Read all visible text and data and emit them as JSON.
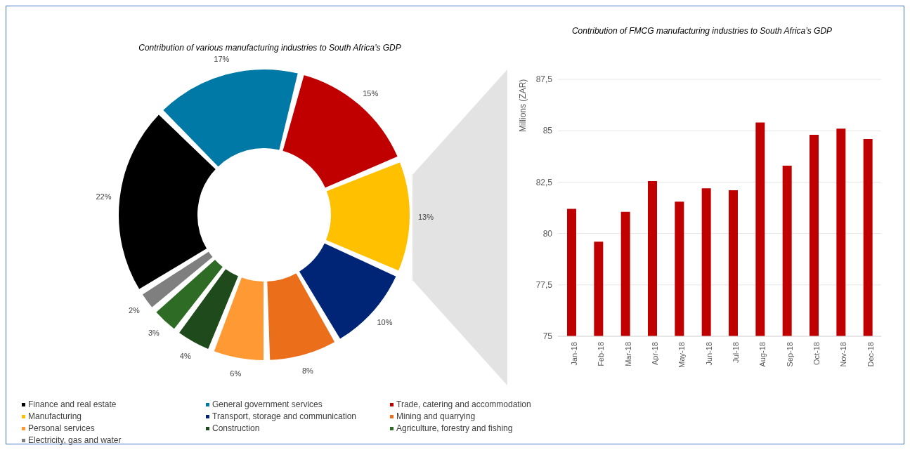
{
  "chart_data": [
    {
      "type": "donut",
      "title": "Contribution of various manufacturing industries to South Africa’s GDP",
      "categories": [
        "Finance and real estate",
        "General government services",
        "Trade, catering and accommodation",
        "Manufacturing",
        "Transport, storage and communication",
        "Mining and quarrying",
        "Personal services",
        "Construction",
        "Agriculture, forestry and fishing",
        "Electricity, gas and water"
      ],
      "values": [
        22,
        17,
        15,
        13,
        10,
        8,
        6,
        4,
        3,
        2
      ],
      "colors": [
        "#000000",
        "#0079a6",
        "#c00000",
        "#ffc000",
        "#002576",
        "#eb6f1a",
        "#ff9933",
        "#1f4a1c",
        "#2e6b24",
        "#7f7f7f"
      ],
      "value_labels": [
        "22%",
        "17%",
        "15%",
        "13%",
        "10%",
        "8%",
        "6%",
        "4%",
        "3%",
        "2%"
      ],
      "legend": "bottom"
    },
    {
      "type": "bar",
      "title": "Contribution of FMCG manufacturing industries to South Africa’s GDP",
      "ylabel": "Millions (ZAR)",
      "categories": [
        "Jan-18",
        "Feb-18",
        "Mar-18",
        "Apr-18",
        "May-18",
        "Jun-18",
        "Jul-18",
        "Aug-18",
        "Sep-18",
        "Oct-18",
        "Nov-18",
        "Dec-18"
      ],
      "values": [
        81.2,
        79.6,
        81.05,
        82.55,
        81.55,
        82.2,
        82.1,
        85.4,
        83.3,
        84.8,
        85.1,
        84.6
      ],
      "color": "#c00000",
      "ylim": [
        75,
        87.5
      ],
      "yticks": [
        75,
        {
          "value": 77.5,
          "label": "77,5"
        },
        80,
        {
          "value": 82.5,
          "label": "82,5"
        },
        85,
        {
          "value": 87.5,
          "label": "87,5"
        }
      ],
      "grid": "y"
    }
  ]
}
